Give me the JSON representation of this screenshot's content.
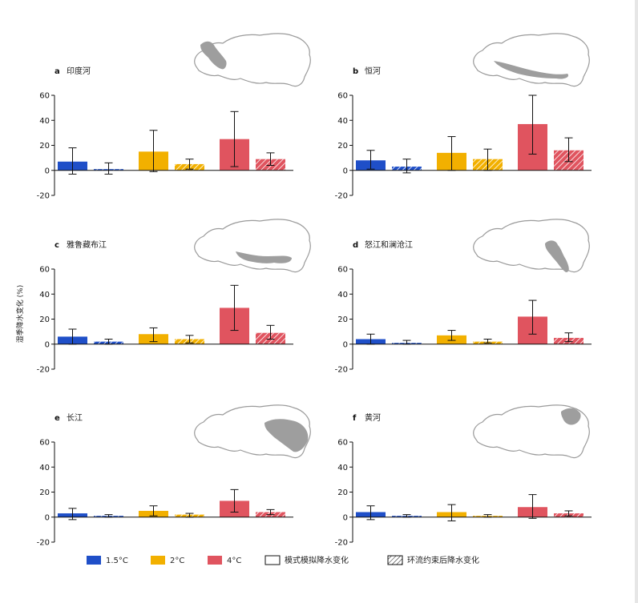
{
  "figure": {
    "y_label": "湿季降水变化 (%)",
    "colors": {
      "c15": "#1f4fc8",
      "c2": "#f2b000",
      "c4": "#e0545f"
    }
  },
  "legend": {
    "items": [
      {
        "label": "1.5°C",
        "color": "#1f4fc8",
        "kind": "solid"
      },
      {
        "label": "2°C",
        "color": "#f2b000",
        "kind": "solid"
      },
      {
        "label": "4°C",
        "color": "#e0545f",
        "kind": "solid"
      },
      {
        "label": "模式模拟降水变化",
        "color": "#ffffff",
        "kind": "outline"
      },
      {
        "label": "环流约束后降水变化",
        "color": "#ffffff",
        "kind": "hatched"
      }
    ]
  },
  "chart_data": [
    {
      "type": "bar",
      "panel_letter": "a",
      "title": "印度河",
      "map_icon": "indus-basin-map-icon",
      "scenarios": [
        "1.5°C",
        "2°C",
        "4°C"
      ],
      "series": [
        {
          "name": "模式模拟降水变化",
          "values": [
            7,
            15,
            25
          ],
          "err_low": [
            -3,
            -1,
            3
          ],
          "err_high": [
            18,
            32,
            47
          ]
        },
        {
          "name": "环流约束后降水变化",
          "values": [
            1,
            5,
            9
          ],
          "err_low": [
            -3,
            1,
            4
          ],
          "err_high": [
            6,
            9,
            14
          ]
        }
      ],
      "yticks": [
        60,
        40,
        20,
        0,
        -20
      ],
      "ylim": [
        -20,
        60
      ]
    },
    {
      "type": "bar",
      "panel_letter": "b",
      "title": "恒河",
      "map_icon": "ganges-basin-map-icon",
      "scenarios": [
        "1.5°C",
        "2°C",
        "4°C"
      ],
      "series": [
        {
          "name": "模式模拟降水变化",
          "values": [
            8,
            14,
            37
          ],
          "err_low": [
            1,
            0,
            13
          ],
          "err_high": [
            16,
            27,
            60
          ]
        },
        {
          "name": "环流约束后降水变化",
          "values": [
            3,
            9,
            16
          ],
          "err_low": [
            -2,
            0,
            7
          ],
          "err_high": [
            9,
            17,
            26
          ]
        }
      ],
      "yticks": [
        60,
        40,
        20,
        0,
        -20
      ],
      "ylim": [
        -20,
        60
      ]
    },
    {
      "type": "bar",
      "panel_letter": "c",
      "title": "雅鲁藏布江",
      "map_icon": "yarlung-tsangpo-basin-map-icon",
      "scenarios": [
        "1.5°C",
        "2°C",
        "4°C"
      ],
      "series": [
        {
          "name": "模式模拟降水变化",
          "values": [
            6,
            8,
            29
          ],
          "err_low": [
            0,
            2,
            11
          ],
          "err_high": [
            12,
            13,
            47
          ]
        },
        {
          "name": "环流约束后降水变化",
          "values": [
            2,
            4,
            9
          ],
          "err_low": [
            0,
            1,
            4
          ],
          "err_high": [
            4,
            7,
            15
          ]
        }
      ],
      "yticks": [
        60,
        40,
        20,
        0,
        -20
      ],
      "ylim": [
        -20,
        60
      ]
    },
    {
      "type": "bar",
      "panel_letter": "d",
      "title": "怒江和澜沧江",
      "map_icon": "nu-lancang-basin-map-icon",
      "scenarios": [
        "1.5°C",
        "2°C",
        "4°C"
      ],
      "series": [
        {
          "name": "模式模拟降水变化",
          "values": [
            4,
            7,
            22
          ],
          "err_low": [
            0,
            3,
            8
          ],
          "err_high": [
            8,
            11,
            35
          ]
        },
        {
          "name": "环流约束后降水变化",
          "values": [
            1,
            2,
            5
          ],
          "err_low": [
            0,
            1,
            2
          ],
          "err_high": [
            3,
            4,
            9
          ]
        }
      ],
      "yticks": [
        60,
        40,
        20,
        0,
        -20
      ],
      "ylim": [
        -20,
        60
      ]
    },
    {
      "type": "bar",
      "panel_letter": "e",
      "title": "长江",
      "map_icon": "yangtze-basin-map-icon",
      "scenarios": [
        "1.5°C",
        "2°C",
        "4°C"
      ],
      "series": [
        {
          "name": "模式模拟降水变化",
          "values": [
            3,
            5,
            13
          ],
          "err_low": [
            -2,
            1,
            4
          ],
          "err_high": [
            7,
            9,
            22
          ]
        },
        {
          "name": "环流约束后降水变化",
          "values": [
            1,
            2,
            4
          ],
          "err_low": [
            0,
            0,
            2
          ],
          "err_high": [
            2,
            3,
            6
          ]
        }
      ],
      "yticks": [
        60,
        40,
        20,
        0,
        -20
      ],
      "ylim": [
        -20,
        60
      ]
    },
    {
      "type": "bar",
      "panel_letter": "f",
      "title": "黄河",
      "map_icon": "yellow-river-basin-map-icon",
      "scenarios": [
        "1.5°C",
        "2°C",
        "4°C"
      ],
      "series": [
        {
          "name": "模式模拟降水变化",
          "values": [
            4,
            4,
            8
          ],
          "err_low": [
            -2,
            -3,
            -1
          ],
          "err_high": [
            9,
            10,
            18
          ]
        },
        {
          "name": "环流约束后降水变化",
          "values": [
            1,
            1,
            3
          ],
          "err_low": [
            0,
            0,
            1
          ],
          "err_high": [
            2,
            2,
            5
          ]
        }
      ],
      "yticks": [
        60,
        40,
        20,
        0,
        -20
      ],
      "ylim": [
        -20,
        60
      ]
    }
  ]
}
